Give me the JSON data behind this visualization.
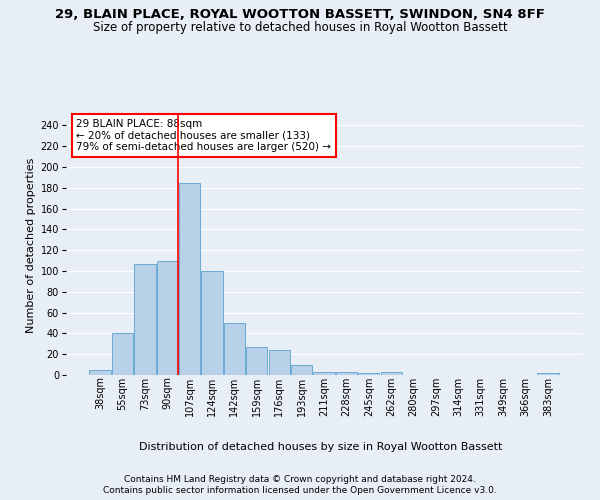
{
  "title1": "29, BLAIN PLACE, ROYAL WOOTTON BASSETT, SWINDON, SN4 8FF",
  "title2": "Size of property relative to detached houses in Royal Wootton Bassett",
  "xlabel": "Distribution of detached houses by size in Royal Wootton Bassett",
  "ylabel": "Number of detached properties",
  "footer1": "Contains HM Land Registry data © Crown copyright and database right 2024.",
  "footer2": "Contains public sector information licensed under the Open Government Licence v3.0.",
  "annotation_title": "29 BLAIN PLACE: 88sqm",
  "annotation_line2": "← 20% of detached houses are smaller (133)",
  "annotation_line3": "79% of semi-detached houses are larger (520) →",
  "bar_color": "#b8d0e8",
  "bar_edge_color": "#6aaad4",
  "categories": [
    "38sqm",
    "55sqm",
    "73sqm",
    "90sqm",
    "107sqm",
    "124sqm",
    "142sqm",
    "159sqm",
    "176sqm",
    "193sqm",
    "211sqm",
    "228sqm",
    "245sqm",
    "262sqm",
    "280sqm",
    "297sqm",
    "314sqm",
    "331sqm",
    "349sqm",
    "366sqm",
    "383sqm"
  ],
  "values": [
    5,
    40,
    107,
    110,
    185,
    100,
    50,
    27,
    24,
    10,
    3,
    3,
    2,
    3,
    0,
    0,
    0,
    0,
    0,
    0,
    2
  ],
  "ylim": [
    0,
    250
  ],
  "yticks": [
    0,
    20,
    40,
    60,
    80,
    100,
    120,
    140,
    160,
    180,
    200,
    220,
    240
  ],
  "red_line_x": 3.5,
  "bg_color": "#e8eef5",
  "plot_bg_color": "#e8eef5",
  "grid_color": "#ffffff",
  "title1_fontsize": 9.5,
  "title2_fontsize": 8.5,
  "xlabel_fontsize": 8,
  "ylabel_fontsize": 8,
  "footer_fontsize": 6.5,
  "tick_fontsize": 7,
  "annotation_fontsize": 7.5
}
